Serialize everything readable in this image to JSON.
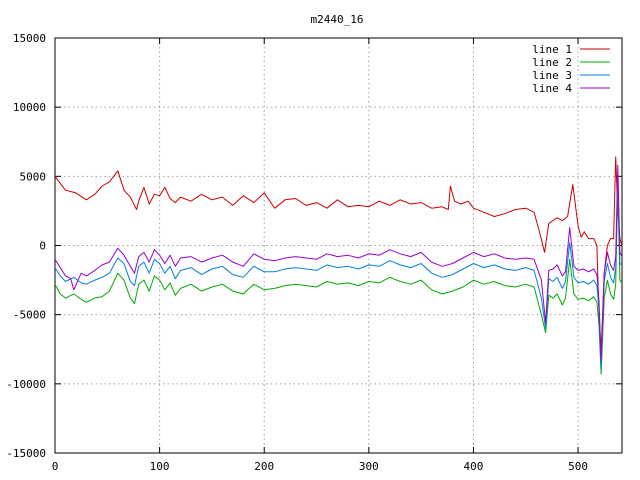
{
  "chart_data": {
    "type": "line",
    "title": "m2440_16",
    "xlabel": "",
    "ylabel": "",
    "xlim": [
      0,
      542
    ],
    "ylim": [
      -15000,
      15000
    ],
    "x_ticks": [
      0,
      100,
      200,
      300,
      400,
      500
    ],
    "y_ticks": [
      -15000,
      -10000,
      -5000,
      0,
      5000,
      10000,
      15000
    ],
    "grid": true,
    "legend_position": "top-right",
    "series": [
      {
        "name": "line 1",
        "color": "#cc0000",
        "x": [
          0,
          5,
          10,
          20,
          30,
          38,
          45,
          52,
          60,
          66,
          72,
          78,
          80,
          85,
          90,
          95,
          100,
          105,
          110,
          115,
          120,
          130,
          140,
          150,
          160,
          170,
          180,
          190,
          200,
          210,
          220,
          230,
          240,
          250,
          260,
          270,
          280,
          290,
          300,
          310,
          320,
          330,
          340,
          350,
          360,
          370,
          376,
          378,
          382,
          388,
          395,
          400,
          410,
          420,
          430,
          440,
          450,
          458,
          463,
          468,
          470,
          472,
          476,
          480,
          485,
          490,
          495,
          500,
          503,
          506,
          510,
          515,
          518,
          520,
          522,
          525,
          528,
          531,
          534,
          536,
          538,
          540,
          542
        ],
        "values": [
          5000,
          4500,
          4000,
          3800,
          3300,
          3700,
          4300,
          4600,
          5400,
          4000,
          3500,
          2600,
          3200,
          4200,
          3000,
          3700,
          3600,
          4200,
          3400,
          3100,
          3500,
          3200,
          3700,
          3300,
          3500,
          2900,
          3600,
          3100,
          3800,
          2700,
          3300,
          3400,
          2900,
          3100,
          2700,
          3300,
          2800,
          2900,
          2800,
          3200,
          2900,
          3300,
          3000,
          3100,
          2700,
          2800,
          2600,
          4300,
          3200,
          3000,
          3200,
          2700,
          2400,
          2100,
          2300,
          2600,
          2700,
          2400,
          1000,
          -500,
          600,
          1600,
          1800,
          2000,
          1800,
          2100,
          4400,
          1400,
          600,
          1000,
          500,
          500,
          0,
          -5000,
          -7700,
          -2000,
          0,
          500,
          500,
          6400,
          2500,
          500,
          0
        ],
        "labels": [
          "5000",
          "4500",
          "4000",
          "3800",
          "3300",
          "3700",
          "4300",
          "4600",
          "5400",
          "4000",
          "3500",
          "2600",
          "3200",
          "4200",
          "3000",
          "3700",
          "3600",
          "4200",
          "3400",
          "3100",
          "3500",
          "3200",
          "3700",
          "3300",
          "3500",
          "2900",
          "3600",
          "3100",
          "3800",
          "2700",
          "3300",
          "3400",
          "2900",
          "3100",
          "2700",
          "3300",
          "2800",
          "2900",
          "2800",
          "3200",
          "2900",
          "3300",
          "3000",
          "3100",
          "2700",
          "2800",
          "2600",
          "4300",
          "3200",
          "3000",
          "3200",
          "2700",
          "2400",
          "2100",
          "2300",
          "2600",
          "2700",
          "2400",
          "1000",
          "-500",
          "600",
          "1600",
          "1800",
          "2000",
          "1800",
          "2100",
          "4400",
          "1400",
          "600",
          "1000",
          "500",
          "500",
          "0",
          "-5000",
          "-7700",
          "-2000",
          "0",
          "500",
          "500",
          "6400",
          "2500",
          "500",
          "0"
        ]
      },
      {
        "name": "line 2",
        "color": "#00aa00",
        "x": [
          0,
          5,
          10,
          18,
          25,
          30,
          38,
          45,
          52,
          60,
          66,
          72,
          76,
          80,
          85,
          90,
          95,
          100,
          105,
          110,
          115,
          120,
          130,
          140,
          150,
          160,
          170,
          180,
          190,
          200,
          210,
          220,
          230,
          240,
          250,
          260,
          270,
          280,
          290,
          300,
          310,
          320,
          330,
          340,
          350,
          360,
          370,
          380,
          390,
          400,
          410,
          420,
          430,
          440,
          450,
          458,
          465,
          469,
          472,
          476,
          480,
          485,
          488,
          492,
          496,
          500,
          505,
          510,
          515,
          518,
          520,
          522,
          525,
          528,
          531,
          534,
          536,
          538,
          540,
          542
        ],
        "values": [
          -2800,
          -3500,
          -3800,
          -3500,
          -3900,
          -4100,
          -3800,
          -3700,
          -3300,
          -2000,
          -2500,
          -3800,
          -4200,
          -2800,
          -2500,
          -3300,
          -2200,
          -2500,
          -3200,
          -2700,
          -3600,
          -3100,
          -2800,
          -3300,
          -3000,
          -2800,
          -3300,
          -3500,
          -2800,
          -3200,
          -3100,
          -2900,
          -2800,
          -2900,
          -3000,
          -2600,
          -2800,
          -2700,
          -2900,
          -2600,
          -2700,
          -2300,
          -2600,
          -2800,
          -2500,
          -3200,
          -3500,
          -3300,
          -3000,
          -2500,
          -2800,
          -2600,
          -2900,
          -3000,
          -2800,
          -3000,
          -5000,
          -6300,
          -3600,
          -3800,
          -3500,
          -4300,
          -3800,
          -1000,
          -3500,
          -3900,
          -3800,
          -4000,
          -3700,
          -4100,
          -5800,
          -9300,
          -3800,
          -2500,
          -3500,
          -3900,
          -2800,
          4400,
          -2500,
          -2700
        ],
        "labels": [
          "-2800",
          "-3500",
          "-3800",
          "-3500",
          "-3900",
          "-4100",
          "-3800",
          "-3700",
          "-3300",
          "-2000",
          "-2500",
          "-3800",
          "-4200",
          "-2800",
          "-2500",
          "-3300",
          "-2200",
          "-2500",
          "-3200",
          "-2700",
          "-3600",
          "-3100",
          "-2800",
          "-3300",
          "-3000",
          "-2800",
          "-3300",
          "-3500",
          "-2800",
          "-3200",
          "-3100",
          "-2900",
          "-2800",
          "-2900",
          "-3000",
          "-2600",
          "-2800",
          "-2700",
          "-2900",
          "-2600",
          "-2700",
          "-2300",
          "-2600",
          "-2800",
          "-2500",
          "-3200",
          "-3500",
          "-3300",
          "-3000",
          "-2500",
          "-2800",
          "-2600",
          "-2900",
          "-3000",
          "-2800",
          "-3000",
          "-5000",
          "-6300",
          "-3600",
          "-3800",
          "-3500",
          "-4300",
          "-3800",
          "-1000",
          "-3500",
          "-3900",
          "-3800",
          "-4000",
          "-3700",
          "-4100",
          "-5800",
          "-9300",
          "-3800",
          "-2500",
          "-3500",
          "-3900",
          "-2800",
          "4400",
          "-2500",
          "-2700"
        ]
      },
      {
        "name": "line 3",
        "color": "#0080e0",
        "x": [
          0,
          5,
          10,
          18,
          25,
          30,
          38,
          45,
          52,
          60,
          66,
          72,
          76,
          80,
          85,
          90,
          95,
          100,
          105,
          110,
          115,
          120,
          130,
          140,
          150,
          160,
          170,
          180,
          190,
          200,
          210,
          220,
          230,
          240,
          250,
          260,
          270,
          280,
          290,
          300,
          310,
          320,
          330,
          340,
          350,
          360,
          370,
          380,
          390,
          400,
          410,
          420,
          430,
          440,
          450,
          458,
          465,
          469,
          472,
          476,
          480,
          485,
          488,
          492,
          496,
          500,
          505,
          510,
          515,
          518,
          520,
          522,
          525,
          528,
          531,
          534,
          536,
          538,
          540,
          542
        ],
        "values": [
          -1600,
          -2200,
          -2600,
          -2300,
          -2700,
          -2800,
          -2500,
          -2300,
          -2000,
          -900,
          -1300,
          -2600,
          -2900,
          -1500,
          -1200,
          -2000,
          -1000,
          -1300,
          -2000,
          -1500,
          -2400,
          -1800,
          -1600,
          -2100,
          -1700,
          -1500,
          -2100,
          -2300,
          -1500,
          -1900,
          -1900,
          -1700,
          -1600,
          -1700,
          -1800,
          -1400,
          -1600,
          -1500,
          -1700,
          -1400,
          -1500,
          -1100,
          -1400,
          -1600,
          -1300,
          -2000,
          -2300,
          -2100,
          -1700,
          -1300,
          -1600,
          -1400,
          -1700,
          -1800,
          -1600,
          -1800,
          -3800,
          -6000,
          -2400,
          -2600,
          -2300,
          -3100,
          -2600,
          200,
          -2300,
          -2700,
          -2600,
          -2800,
          -2500,
          -2900,
          -4600,
          -8900,
          -2600,
          -1300,
          -2300,
          -2700,
          -1600,
          5000,
          -1300,
          -1400
        ],
        "labels": [
          "-1600",
          "-2200",
          "-2600",
          "-2300",
          "-2700",
          "-2800",
          "-2500",
          "-2300",
          "-2000",
          "-900",
          "-1300",
          "-2600",
          "-2900",
          "-1500",
          "-1200",
          "-2000",
          "-1000",
          "-1300",
          "-2000",
          "-1500",
          "-2400",
          "-1800",
          "-1600",
          "-2100",
          "-1700",
          "-1500",
          "-2100",
          "-2300",
          "-1500",
          "-1900",
          "-1900",
          "-1700",
          "-1600",
          "-1700",
          "-1800",
          "-1400",
          "-1600",
          "-1500",
          "-1700",
          "-1400",
          "-1500",
          "-1100",
          "-1400",
          "-1600",
          "-1300",
          "-2000",
          "-2300",
          "-2100",
          "-1700",
          "-1300",
          "-1600",
          "-1400",
          "-1700",
          "-1800",
          "-1600",
          "-1800",
          "-3800",
          "-6000",
          "-2400",
          "-2600",
          "-2300",
          "-3100",
          "-2600",
          "200",
          "-2300",
          "-2700",
          "-2600",
          "-2800",
          "-2500",
          "-2900",
          "-4600",
          "-8900",
          "-2600",
          "-1300",
          "-2300",
          "-2700",
          "-1600",
          "5000",
          "-1300",
          "-1400"
        ]
      },
      {
        "name": "line 4",
        "color": "#9900cc",
        "x": [
          0,
          5,
          10,
          15,
          18,
          25,
          30,
          38,
          45,
          52,
          60,
          66,
          72,
          76,
          80,
          85,
          90,
          95,
          100,
          105,
          110,
          115,
          120,
          130,
          140,
          150,
          160,
          170,
          180,
          190,
          200,
          210,
          220,
          230,
          240,
          250,
          260,
          270,
          280,
          290,
          300,
          310,
          320,
          330,
          340,
          350,
          360,
          370,
          380,
          390,
          400,
          410,
          420,
          430,
          440,
          450,
          458,
          465,
          469,
          472,
          476,
          480,
          485,
          488,
          492,
          496,
          500,
          505,
          510,
          515,
          518,
          520,
          522,
          525,
          528,
          531,
          534,
          536,
          538,
          540,
          542
        ],
        "values": [
          -1000,
          -1600,
          -2200,
          -2400,
          -3200,
          -2000,
          -2200,
          -1800,
          -1400,
          -1200,
          -200,
          -700,
          -1500,
          -2000,
          -800,
          -500,
          -1200,
          -300,
          -700,
          -1300,
          -700,
          -1500,
          -900,
          -800,
          -1200,
          -900,
          -700,
          -1200,
          -1500,
          -600,
          -1000,
          -1100,
          -900,
          -800,
          -900,
          -1000,
          -600,
          -800,
          -700,
          -900,
          -600,
          -700,
          -300,
          -600,
          -800,
          -500,
          -1200,
          -1500,
          -1300,
          -900,
          -500,
          -800,
          -600,
          -900,
          -1000,
          -900,
          -1000,
          -2500,
          -5600,
          -1800,
          -1700,
          -1400,
          -2200,
          -1900,
          1300,
          -1500,
          -1800,
          -1700,
          -1900,
          -1700,
          -2100,
          -4000,
          -8300,
          -2000,
          -500,
          -1400,
          -1800,
          -800,
          5800,
          -500,
          -800
        ],
        "labels": [
          "-1000",
          "-1600",
          "-2200",
          "-2400",
          "-3200",
          "-2000",
          "-2200",
          "-1800",
          "-1400",
          "-1200",
          "-200",
          "-700",
          "-1500",
          "-2000",
          "-800",
          "-500",
          "-1200",
          "-300",
          "-700",
          "-1300",
          "-700",
          "-1500",
          "-900",
          "-800",
          "-1200",
          "-900",
          "-700",
          "-1200",
          "-1500",
          "-600",
          "-1000",
          "-1100",
          "-900",
          "-800",
          "-900",
          "-1000",
          "-600",
          "-800",
          "-700",
          "-900",
          "-600",
          "-700",
          "-300",
          "-600",
          "-800",
          "-500",
          "-1200",
          "-1500",
          "-1300",
          "-900",
          "-500",
          "-800",
          "-600",
          "-900",
          "-1000",
          "-900",
          "-1000",
          "-2500",
          "-5600",
          "-1800",
          "-1700",
          "-1400",
          "-2200",
          "-1900",
          "1300",
          "-1500",
          "-1800",
          "-1700",
          "-1900",
          "-1700",
          "-2100",
          "-4000",
          "-8300",
          "-2000",
          "-500",
          "-1400",
          "-1800",
          "-800",
          "5800",
          "-500",
          "-800"
        ]
      }
    ]
  }
}
